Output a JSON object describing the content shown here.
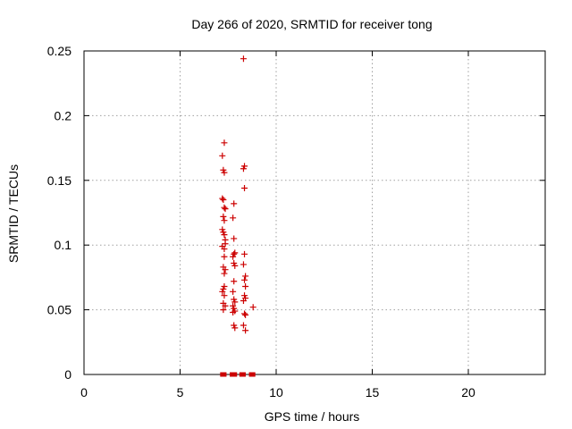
{
  "chart_data": {
    "type": "scatter",
    "title": "Day 266 of 2020, SRMTID for receiver tong",
    "xlabel": "GPS time / hours",
    "ylabel": "SRMTID / TECUs",
    "xlim": [
      0,
      24
    ],
    "ylim": [
      0,
      0.25
    ],
    "x_ticks": [
      0,
      5,
      10,
      15,
      20
    ],
    "y_ticks": [
      0,
      0.05,
      0.1,
      0.15,
      0.2,
      0.25
    ],
    "x_tick_labels": [
      "0",
      "5",
      "10",
      "15",
      "20"
    ],
    "y_tick_labels": [
      "0",
      "0.05",
      "0.1",
      "0.15",
      "0.2",
      "0.25"
    ],
    "grid": true,
    "color": "#cc0000",
    "points": [
      [
        8.3,
        0.244
      ],
      [
        7.3,
        0.179
      ],
      [
        7.2,
        0.169
      ],
      [
        7.25,
        0.158
      ],
      [
        7.3,
        0.156
      ],
      [
        8.35,
        0.161
      ],
      [
        8.3,
        0.159
      ],
      [
        8.35,
        0.144
      ],
      [
        7.2,
        0.136
      ],
      [
        7.25,
        0.135
      ],
      [
        7.3,
        0.129
      ],
      [
        7.35,
        0.128
      ],
      [
        7.8,
        0.132
      ],
      [
        7.25,
        0.122
      ],
      [
        7.3,
        0.119
      ],
      [
        7.75,
        0.121
      ],
      [
        7.2,
        0.112
      ],
      [
        7.25,
        0.11
      ],
      [
        7.3,
        0.108
      ],
      [
        7.35,
        0.104
      ],
      [
        7.8,
        0.105
      ],
      [
        7.35,
        0.101
      ],
      [
        7.2,
        0.099
      ],
      [
        7.3,
        0.097
      ],
      [
        7.8,
        0.093
      ],
      [
        7.85,
        0.094
      ],
      [
        7.75,
        0.091
      ],
      [
        7.3,
        0.091
      ],
      [
        8.35,
        0.093
      ],
      [
        8.3,
        0.085
      ],
      [
        7.8,
        0.086
      ],
      [
        7.85,
        0.084
      ],
      [
        7.25,
        0.083
      ],
      [
        7.35,
        0.081
      ],
      [
        7.3,
        0.078
      ],
      [
        8.4,
        0.076
      ],
      [
        8.35,
        0.073
      ],
      [
        7.8,
        0.072
      ],
      [
        7.3,
        0.068
      ],
      [
        7.25,
        0.066
      ],
      [
        8.4,
        0.068
      ],
      [
        7.2,
        0.064
      ],
      [
        7.75,
        0.064
      ],
      [
        7.3,
        0.061
      ],
      [
        8.35,
        0.061
      ],
      [
        8.4,
        0.059
      ],
      [
        8.3,
        0.057
      ],
      [
        7.8,
        0.058
      ],
      [
        7.85,
        0.056
      ],
      [
        7.25,
        0.055
      ],
      [
        7.35,
        0.053
      ],
      [
        7.75,
        0.053
      ],
      [
        7.8,
        0.051
      ],
      [
        8.8,
        0.052
      ],
      [
        7.25,
        0.05
      ],
      [
        7.85,
        0.049
      ],
      [
        8.35,
        0.047
      ],
      [
        8.4,
        0.046
      ],
      [
        7.75,
        0.048
      ],
      [
        8.3,
        0.038
      ],
      [
        7.8,
        0.038
      ],
      [
        7.85,
        0.036
      ],
      [
        8.4,
        0.034
      ],
      [
        7.2,
        0
      ],
      [
        7.3,
        0
      ],
      [
        7.7,
        0
      ],
      [
        7.85,
        0
      ],
      [
        8.2,
        0
      ],
      [
        8.3,
        0
      ],
      [
        8.7,
        0
      ],
      [
        8.8,
        0
      ]
    ]
  }
}
